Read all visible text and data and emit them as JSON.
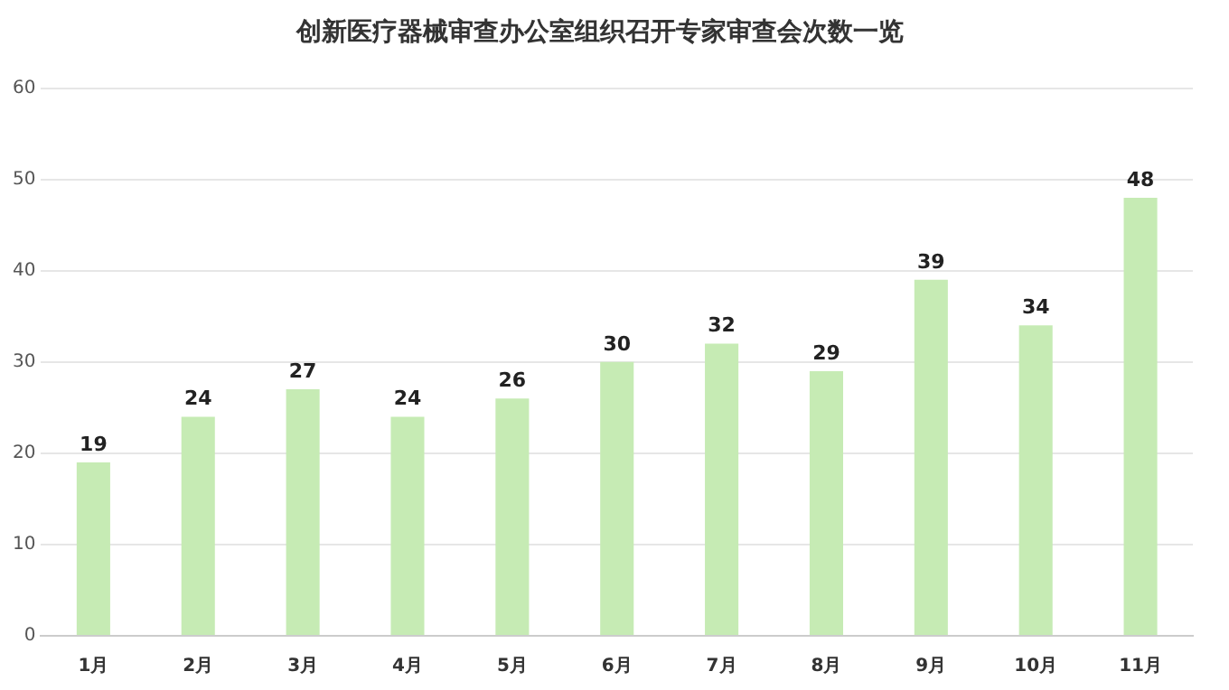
{
  "chart_data": {
    "type": "bar",
    "title": "创新医疗器械审查办公室组织召开专家审查会次数一览",
    "categories": [
      "1月",
      "2月",
      "3月",
      "4月",
      "5月",
      "6月",
      "7月",
      "8月",
      "9月",
      "10月",
      "11月"
    ],
    "values": [
      19,
      24,
      27,
      24,
      26,
      30,
      32,
      29,
      39,
      34,
      48
    ],
    "color": "#c6ebb4",
    "ylim": [
      0,
      60
    ],
    "yticks": [
      0,
      10,
      20,
      30,
      40,
      50,
      60
    ],
    "grid": "y",
    "data_labels": true
  }
}
